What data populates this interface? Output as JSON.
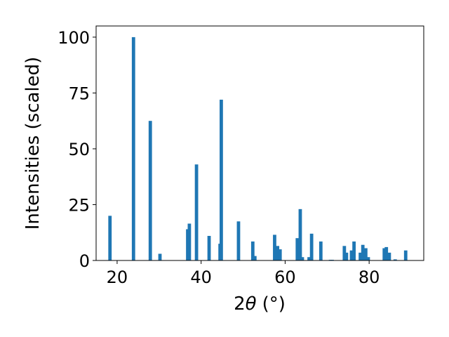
{
  "chart_data": {
    "type": "bar",
    "title": "",
    "xlabel": "2θ (°)",
    "xlabel_parts": {
      "base": "2",
      "theta": "θ",
      "unit": "(°)"
    },
    "ylabel": "Intensities (scaled)",
    "xlim": [
      15,
      93
    ],
    "ylim": [
      0,
      105
    ],
    "xticks": [
      20,
      40,
      60,
      80
    ],
    "yticks": [
      0,
      25,
      50,
      75,
      100
    ],
    "grid": false,
    "legend": "none",
    "bar_color": "#1f77b4",
    "bar_width": 0.8,
    "x": [
      18.3,
      23.9,
      27.9,
      30.2,
      36.8,
      37.2,
      38.9,
      41.9,
      44.5,
      44.8,
      48.9,
      52.3,
      52.8,
      57.5,
      58.2,
      58.8,
      62.9,
      63.6,
      64.1,
      65.7,
      66.3,
      68.5,
      70.8,
      71.2,
      74.1,
      74.6,
      75.8,
      76.4,
      77.9,
      78.5,
      79.2,
      79.8,
      83.6,
      84.1,
      84.8,
      86.2,
      88.7
    ],
    "values": [
      20,
      100,
      62.5,
      3,
      14,
      16.5,
      43,
      11,
      7.5,
      72,
      17.5,
      8.5,
      2,
      11.5,
      6.5,
      5,
      10,
      23,
      1.5,
      1.5,
      12,
      8.5,
      0.3,
      0.3,
      6.5,
      3.5,
      4.5,
      8.5,
      3.5,
      7,
      5.5,
      1.5,
      5.5,
      6,
      3.5,
      0.5,
      4.5
    ]
  }
}
